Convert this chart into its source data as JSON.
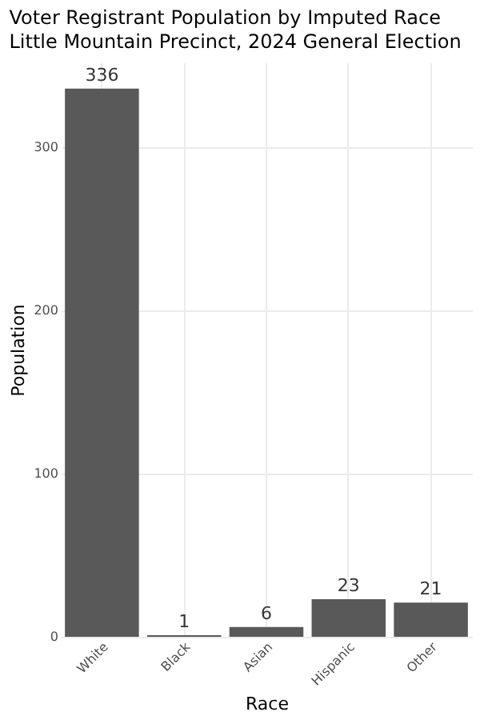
{
  "chart_data": {
    "type": "bar",
    "title": "Voter Registrant Population by Imputed Race",
    "subtitle": "Little Mountain Precinct,  2024 General Election",
    "xlabel": "Race",
    "ylabel": "Population",
    "categories": [
      "White",
      "Black",
      "Asian",
      "Hispanic",
      "Other"
    ],
    "values": [
      336,
      1,
      6,
      23,
      21
    ],
    "color": "#595959",
    "ylim": [
      0,
      352
    ],
    "yticks": [
      0,
      100,
      200,
      300
    ],
    "grid": true,
    "data_labels": true
  }
}
